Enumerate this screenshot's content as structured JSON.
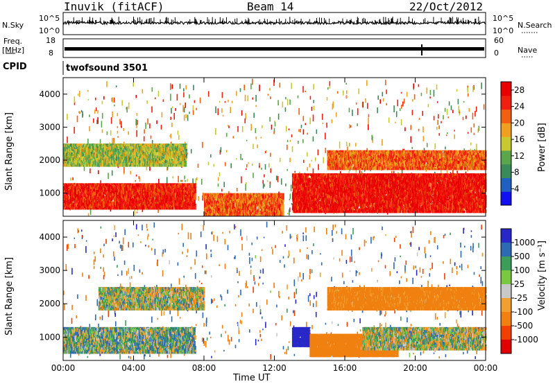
{
  "header": {
    "station": "Inuvik (fitACF)",
    "beam": "Beam 14",
    "date": "22/Oct/2012"
  },
  "top_panel": {
    "left_label": "N.Sky",
    "right_label": "N.Search",
    "left_ticks": [
      "10^5",
      "10^0"
    ],
    "right_ticks": [
      "10^5",
      "10^0"
    ]
  },
  "freq_panel": {
    "left_label_1": "Freq.",
    "left_label_2": "[MHz]",
    "right_label": "Nave",
    "left_ticks": [
      "18",
      "8"
    ],
    "right_ticks": [
      "60",
      "0"
    ]
  },
  "cpid": {
    "label": "CPID",
    "value": "twofsound 3501"
  },
  "colors": {
    "power": [
      "#1010f0",
      "#2060c0",
      "#3a8a5a",
      "#5aa64a",
      "#c8c830",
      "#f0a020",
      "#f06010",
      "#f02010",
      "#e80000"
    ],
    "velocity": [
      "#2828c8",
      "#2e6ab4",
      "#3c9c5a",
      "#7ac840",
      "#c8c8c8",
      "#f0a030",
      "#f08010",
      "#f04000",
      "#e00000"
    ]
  },
  "chart_data": [
    {
      "type": "heatmap",
      "title": "",
      "xlabel": "",
      "ylabel": "Slant Range [km]",
      "x_ticks": [
        "00:00",
        "04:00",
        "08:00",
        "12:00",
        "16:00",
        "20:00",
        "00:00"
      ],
      "y_ticks": [
        1000,
        2000,
        3000,
        4000
      ],
      "ylim": [
        300,
        4500
      ],
      "colorbar": {
        "label": "Power [dB]",
        "ticks": [
          4,
          8,
          12,
          16,
          20,
          24,
          28
        ],
        "range": [
          0,
          30
        ]
      },
      "regions": [
        {
          "t_start": 0.0,
          "t_end": 7.5,
          "range_min": 500,
          "range_max": 1300,
          "value": 26
        },
        {
          "t_start": 0.0,
          "t_end": 7.0,
          "range_min": 1800,
          "range_max": 2500,
          "value": 14
        },
        {
          "t_start": 8.0,
          "t_end": 12.5,
          "range_min": 300,
          "range_max": 1000,
          "value": 22
        },
        {
          "t_start": 13.0,
          "t_end": 24.0,
          "range_min": 400,
          "range_max": 1600,
          "value": 27
        },
        {
          "t_start": 15.0,
          "t_end": 24.0,
          "range_min": 1700,
          "range_max": 2300,
          "value": 22
        }
      ]
    },
    {
      "type": "heatmap",
      "title": "",
      "xlabel": "Time UT",
      "ylabel": "Slant Range [km]",
      "x_ticks": [
        "00:00",
        "04:00",
        "08:00",
        "12:00",
        "16:00",
        "20:00",
        "00:00"
      ],
      "y_ticks": [
        1000,
        2000,
        3000,
        4000
      ],
      "ylim": [
        300,
        4500
      ],
      "colorbar": {
        "label": "Velocity [m s⁻¹]",
        "ticks": [
          1000,
          500,
          100,
          25,
          -25,
          -100,
          -500,
          -1000
        ]
      },
      "regions": [
        {
          "t_start": 0.0,
          "t_end": 7.5,
          "range_min": 500,
          "range_max": 1300,
          "value": 50
        },
        {
          "t_start": 2.0,
          "t_end": 8.0,
          "range_min": 1800,
          "range_max": 2500,
          "value": 0
        },
        {
          "t_start": 13.0,
          "t_end": 14.0,
          "range_min": 700,
          "range_max": 1300,
          "value": 800
        },
        {
          "t_start": 14.0,
          "t_end": 19.0,
          "range_min": 400,
          "range_max": 1100,
          "value": -300
        },
        {
          "t_start": 17.0,
          "t_end": 24.0,
          "range_min": 600,
          "range_max": 1300,
          "value": 0
        },
        {
          "t_start": 15.0,
          "t_end": 24.0,
          "range_min": 1800,
          "range_max": 2500,
          "value": -200
        }
      ]
    }
  ]
}
